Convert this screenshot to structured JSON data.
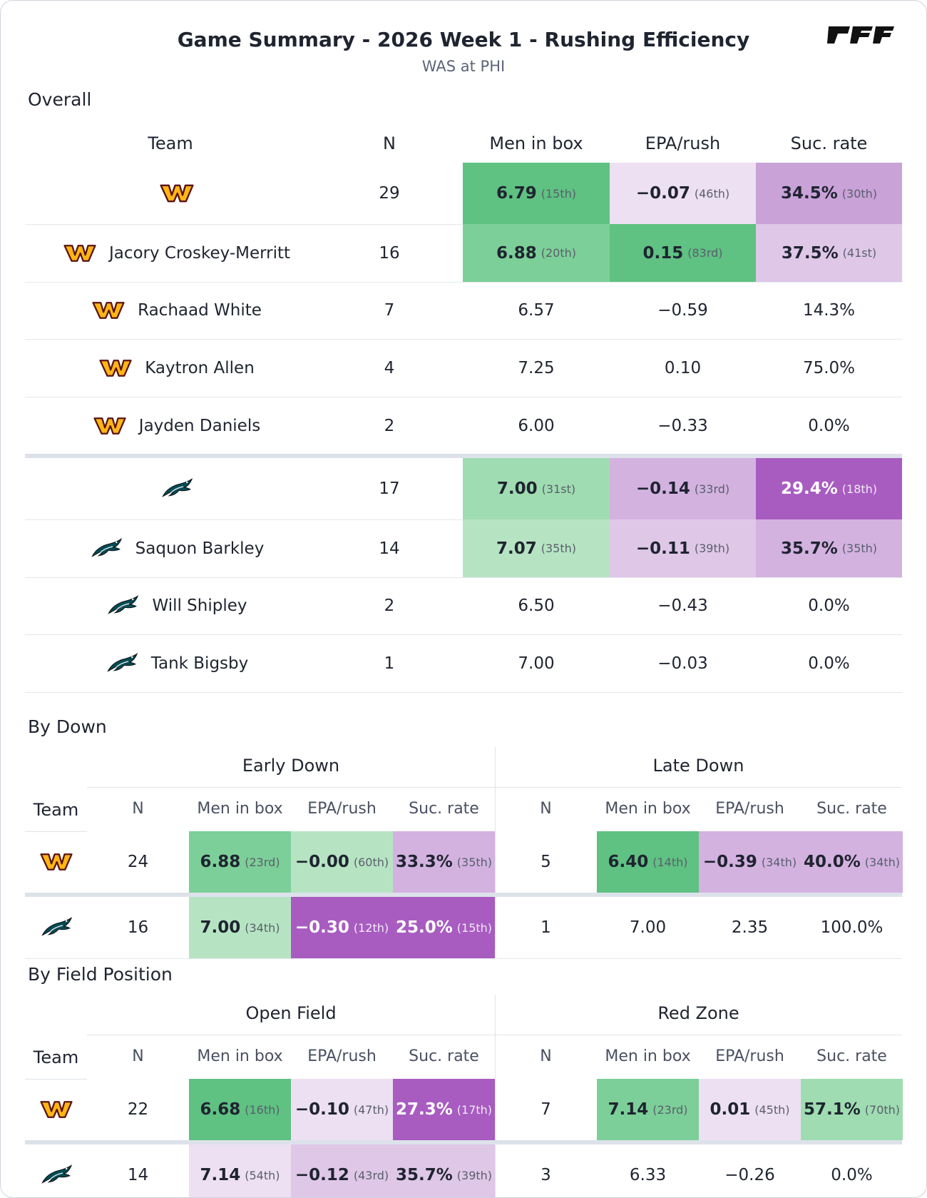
{
  "header": {
    "title": "Game Summary - 2026 Week 1 - Rushing Efficiency",
    "subtitle": "WAS at PHI",
    "brand": "PFF",
    "logo_icon": "pff-logo-icon"
  },
  "colors": {
    "wsh_maroon": "#5a1414",
    "wsh_gold": "#ffb612",
    "phi_green": "#004c54",
    "green_scale": [
      "#b6e4c3",
      "#9fdcb1",
      "#7ccf98",
      "#5fc182"
    ],
    "purple_scale": [
      "#ede0f2",
      "#dfc7e8",
      "#d3b2e0",
      "#b377c8",
      "#a85cc0"
    ]
  },
  "chart_data": [
    {
      "type": "table",
      "title": "Overall",
      "columns": [
        "Team",
        "N",
        "Men in box",
        "EPA/rush",
        "Suc. rate"
      ],
      "rows": [
        {
          "team": "WAS",
          "kind": "team",
          "name": "",
          "n": "29",
          "mib": "6.79",
          "mib_rank": "(15th)",
          "epa": "−0.07",
          "epa_rank": "(46th)",
          "suc": "34.5%",
          "suc_rank": "(30th)"
        },
        {
          "team": "WAS",
          "kind": "player",
          "name": "Jacory Croskey-Merritt",
          "n": "16",
          "mib": "6.88",
          "mib_rank": "(20th)",
          "epa": "0.15",
          "epa_rank": "(83rd)",
          "suc": "37.5%",
          "suc_rank": "(41st)"
        },
        {
          "team": "WAS",
          "kind": "player",
          "name": "Rachaad White",
          "n": "7",
          "mib": "6.57",
          "mib_rank": "",
          "epa": "−0.59",
          "epa_rank": "",
          "suc": "14.3%",
          "suc_rank": ""
        },
        {
          "team": "WAS",
          "kind": "player",
          "name": "Kaytron Allen",
          "n": "4",
          "mib": "7.25",
          "mib_rank": "",
          "epa": "0.10",
          "epa_rank": "",
          "suc": "75.0%",
          "suc_rank": ""
        },
        {
          "team": "WAS",
          "kind": "player",
          "name": "Jayden Daniels",
          "n": "2",
          "mib": "6.00",
          "mib_rank": "",
          "epa": "−0.33",
          "epa_rank": "",
          "suc": "0.0%",
          "suc_rank": ""
        },
        {
          "team": "PHI",
          "kind": "team",
          "name": "",
          "n": "17",
          "mib": "7.00",
          "mib_rank": "(31st)",
          "epa": "−0.14",
          "epa_rank": "(33rd)",
          "suc": "29.4%",
          "suc_rank": "(18th)"
        },
        {
          "team": "PHI",
          "kind": "player",
          "name": "Saquon Barkley",
          "n": "14",
          "mib": "7.07",
          "mib_rank": "(35th)",
          "epa": "−0.11",
          "epa_rank": "(39th)",
          "suc": "35.7%",
          "suc_rank": "(35th)"
        },
        {
          "team": "PHI",
          "kind": "player",
          "name": "Will Shipley",
          "n": "2",
          "mib": "6.50",
          "mib_rank": "",
          "epa": "−0.43",
          "epa_rank": "",
          "suc": "0.0%",
          "suc_rank": ""
        },
        {
          "team": "PHI",
          "kind": "player",
          "name": "Tank Bigsby",
          "n": "1",
          "mib": "7.00",
          "mib_rank": "",
          "epa": "−0.03",
          "epa_rank": "",
          "suc": "0.0%",
          "suc_rank": ""
        }
      ]
    },
    {
      "type": "table",
      "title": "By Down",
      "groups": [
        "Early Down",
        "Late Down"
      ],
      "columns": [
        "Team",
        "N",
        "Men in box",
        "EPA/rush",
        "Suc. rate"
      ],
      "rows": [
        {
          "team": "WAS",
          "g1": {
            "n": "24",
            "mib": "6.88",
            "mib_rank": "(23rd)",
            "epa": "−0.00",
            "epa_rank": "(60th)",
            "suc": "33.3%",
            "suc_rank": "(35th)"
          },
          "g2": {
            "n": "5",
            "mib": "6.40",
            "mib_rank": "(14th)",
            "epa": "−0.39",
            "epa_rank": "(34th)",
            "suc": "40.0%",
            "suc_rank": "(34th)"
          }
        },
        {
          "team": "PHI",
          "g1": {
            "n": "16",
            "mib": "7.00",
            "mib_rank": "(34th)",
            "epa": "−0.30",
            "epa_rank": "(12th)",
            "suc": "25.0%",
            "suc_rank": "(15th)"
          },
          "g2": {
            "n": "1",
            "mib": "7.00",
            "mib_rank": "",
            "epa": "2.35",
            "epa_rank": "",
            "suc": "100.0%",
            "suc_rank": ""
          }
        }
      ]
    },
    {
      "type": "table",
      "title": "By Field Position",
      "groups": [
        "Open Field",
        "Red Zone"
      ],
      "columns": [
        "Team",
        "N",
        "Men in box",
        "EPA/rush",
        "Suc. rate"
      ],
      "rows": [
        {
          "team": "WAS",
          "g1": {
            "n": "22",
            "mib": "6.68",
            "mib_rank": "(16th)",
            "epa": "−0.10",
            "epa_rank": "(47th)",
            "suc": "27.3%",
            "suc_rank": "(17th)"
          },
          "g2": {
            "n": "7",
            "mib": "7.14",
            "mib_rank": "(23rd)",
            "epa": "0.01",
            "epa_rank": "(45th)",
            "suc": "57.1%",
            "suc_rank": "(70th)"
          }
        },
        {
          "team": "PHI",
          "g1": {
            "n": "14",
            "mib": "7.14",
            "mib_rank": "(54th)",
            "epa": "−0.12",
            "epa_rank": "(43rd)",
            "suc": "35.7%",
            "suc_rank": "(39th)"
          },
          "g2": {
            "n": "3",
            "mib": "6.33",
            "mib_rank": "",
            "epa": "−0.26",
            "epa_rank": "",
            "suc": "0.0%",
            "suc_rank": ""
          }
        }
      ]
    }
  ]
}
